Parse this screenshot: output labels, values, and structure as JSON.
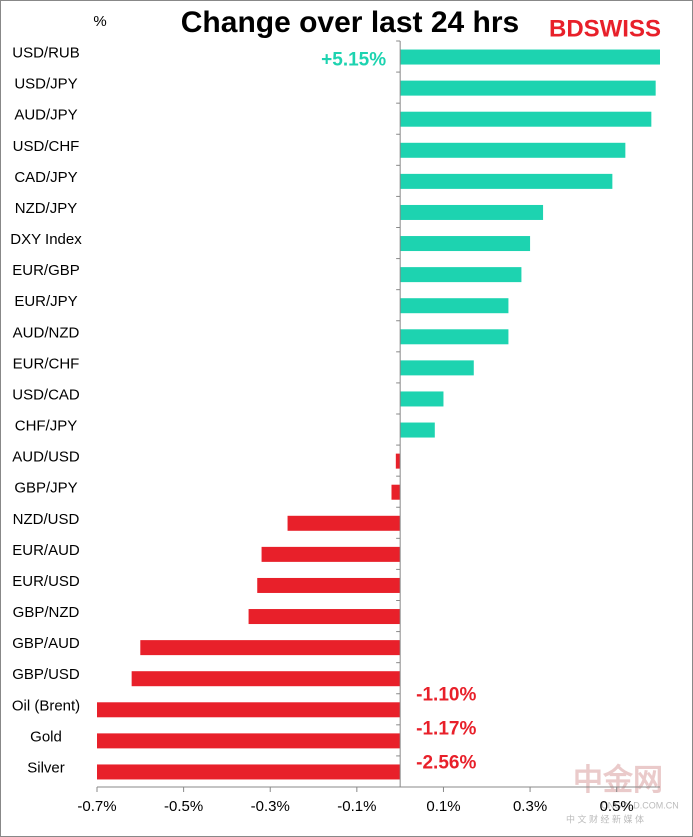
{
  "chart_data": {
    "type": "barh",
    "title": "Change over last 24 hrs",
    "unit_label": "%",
    "brand": "BDSWISS",
    "categories": [
      "USD/RUB",
      "USD/JPY",
      "AUD/JPY",
      "USD/CHF",
      "CAD/JPY",
      "NZD/JPY",
      "DXY Index",
      "EUR/GBP",
      "EUR/JPY",
      "AUD/NZD",
      "EUR/CHF",
      "USD/CAD",
      "CHF/JPY",
      "AUD/USD",
      "GBP/JPY",
      "NZD/USD",
      "EUR/AUD",
      "EUR/USD",
      "GBP/NZD",
      "GBP/AUD",
      "GBP/USD",
      "Oil (Brent)",
      "Gold",
      "Silver"
    ],
    "values": [
      5.15,
      0.59,
      0.58,
      0.52,
      0.49,
      0.33,
      0.3,
      0.28,
      0.25,
      0.25,
      0.17,
      0.1,
      0.08,
      -0.01,
      -0.02,
      -0.26,
      -0.32,
      -0.33,
      -0.35,
      -0.6,
      -0.62,
      -1.1,
      -1.17,
      -2.56
    ],
    "value_labels": [
      "+5.15%",
      null,
      null,
      null,
      null,
      null,
      null,
      null,
      null,
      null,
      null,
      null,
      null,
      null,
      null,
      null,
      null,
      null,
      null,
      null,
      null,
      "-1.10%",
      "-1.17%",
      "-2.56%"
    ],
    "positive_color": "#1dd3b0",
    "negative_color": "#e8202a",
    "xlim": [
      -0.7,
      0.6
    ],
    "xticks": [
      {
        "value": -0.7,
        "label": "-0.7%"
      },
      {
        "value": -0.5,
        "label": "-0.5%"
      },
      {
        "value": -0.3,
        "label": "-0.3%"
      },
      {
        "value": -0.1,
        "label": "-0.1%"
      },
      {
        "value": 0.1,
        "label": "0.1%"
      },
      {
        "value": 0.3,
        "label": "0.3%"
      },
      {
        "value": 0.5,
        "label": "0.5%"
      }
    ],
    "watermark": {
      "name": "中金网",
      "site": "CNGOLD.COM.CN",
      "tagline": "中 文 财 经 新 媒 体"
    }
  }
}
